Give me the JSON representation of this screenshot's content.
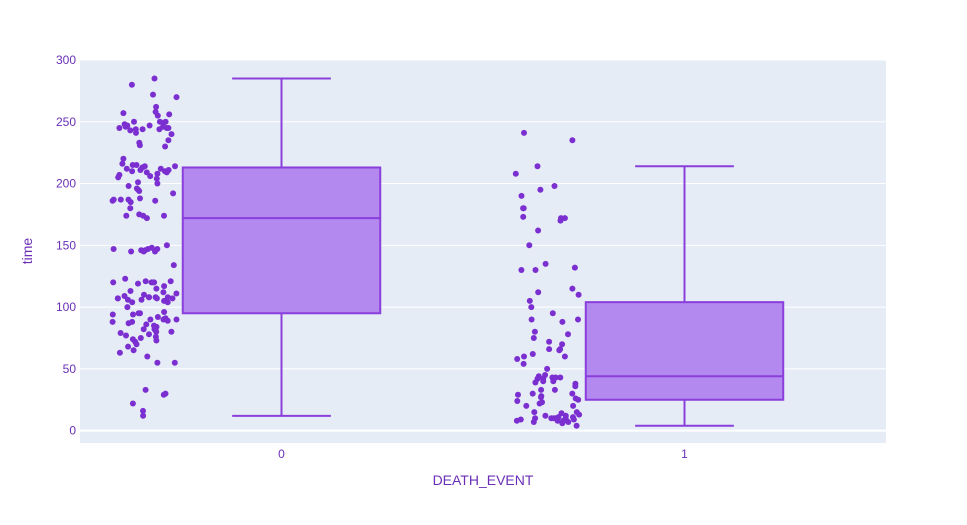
{
  "chart_data": {
    "type": "box",
    "xlabel": "DEATH_EVENT",
    "ylabel": "time",
    "categories": [
      "0",
      "1"
    ],
    "ylim": [
      -10,
      300
    ],
    "yticks": [
      0,
      50,
      100,
      150,
      200,
      250,
      300
    ],
    "grid": true,
    "legend": "none",
    "colors": {
      "marker": "#7b2fd0",
      "box_fill": "#b388ef",
      "box_line": "#8a3fdc",
      "plot_bg": "#e5ecf6",
      "grid": "#ffffff",
      "text": "#6a2fb6"
    },
    "boxes": [
      {
        "category": "0",
        "lower_fence": 12,
        "q1": 95,
        "median": 172,
        "q3": 213,
        "upper_fence": 285
      },
      {
        "category": "1",
        "lower_fence": 4,
        "q1": 25,
        "median": 44,
        "q3": 104,
        "upper_fence": 214
      }
    ],
    "points": [
      {
        "category": "0",
        "values": [
          285,
          280,
          272,
          270,
          262,
          258,
          257,
          256,
          255,
          250,
          250,
          250,
          249,
          248,
          247,
          247,
          246,
          246,
          245,
          245,
          245,
          244,
          244,
          244,
          243,
          241,
          240,
          235,
          233,
          231,
          230,
          220,
          216,
          215,
          215,
          214,
          214,
          213,
          212,
          212,
          211,
          211,
          210,
          210,
          209,
          209,
          208,
          207,
          206,
          205,
          204,
          201,
          200,
          198,
          196,
          195,
          194,
          192,
          188,
          187,
          187,
          187,
          186,
          186,
          185,
          180,
          175,
          174,
          174,
          174,
          172,
          150,
          148,
          147,
          147,
          147,
          146,
          146,
          145,
          145,
          145,
          134,
          123,
          121,
          121,
          120,
          120,
          120,
          120,
          119,
          117,
          115,
          113,
          112,
          111,
          110,
          109,
          108,
          108,
          108,
          108,
          107,
          107,
          107,
          107,
          106,
          106,
          105,
          104,
          104,
          100,
          96,
          95,
          95,
          94,
          94,
          92,
          91,
          90,
          90,
          90,
          89,
          88,
          88,
          87,
          86,
          85,
          84,
          83,
          82,
          82,
          80,
          80,
          79,
          78,
          77,
          76,
          75,
          74,
          73,
          72,
          70,
          68,
          65,
          63,
          60,
          55,
          55,
          33,
          30,
          29,
          22,
          16,
          12
        ]
      },
      {
        "category": "1",
        "values": [
          241,
          235,
          214,
          208,
          198,
          195,
          190,
          180,
          180,
          173,
          172,
          172,
          170,
          162,
          150,
          135,
          132,
          130,
          130,
          115,
          112,
          110,
          105,
          100,
          95,
          90,
          90,
          88,
          80,
          78,
          75,
          72,
          70,
          66,
          66,
          65,
          62,
          60,
          60,
          58,
          54,
          50,
          45,
          44,
          43,
          43,
          43,
          42,
          42,
          40,
          40,
          39,
          38,
          36,
          33,
          33,
          30,
          30,
          29,
          28,
          27,
          26,
          25,
          24,
          23,
          22,
          20,
          20,
          15,
          15,
          14,
          13,
          12,
          12,
          11,
          11,
          10,
          10,
          10,
          10,
          10,
          9,
          9,
          8,
          8,
          8,
          7,
          7,
          6,
          4
        ]
      }
    ]
  }
}
